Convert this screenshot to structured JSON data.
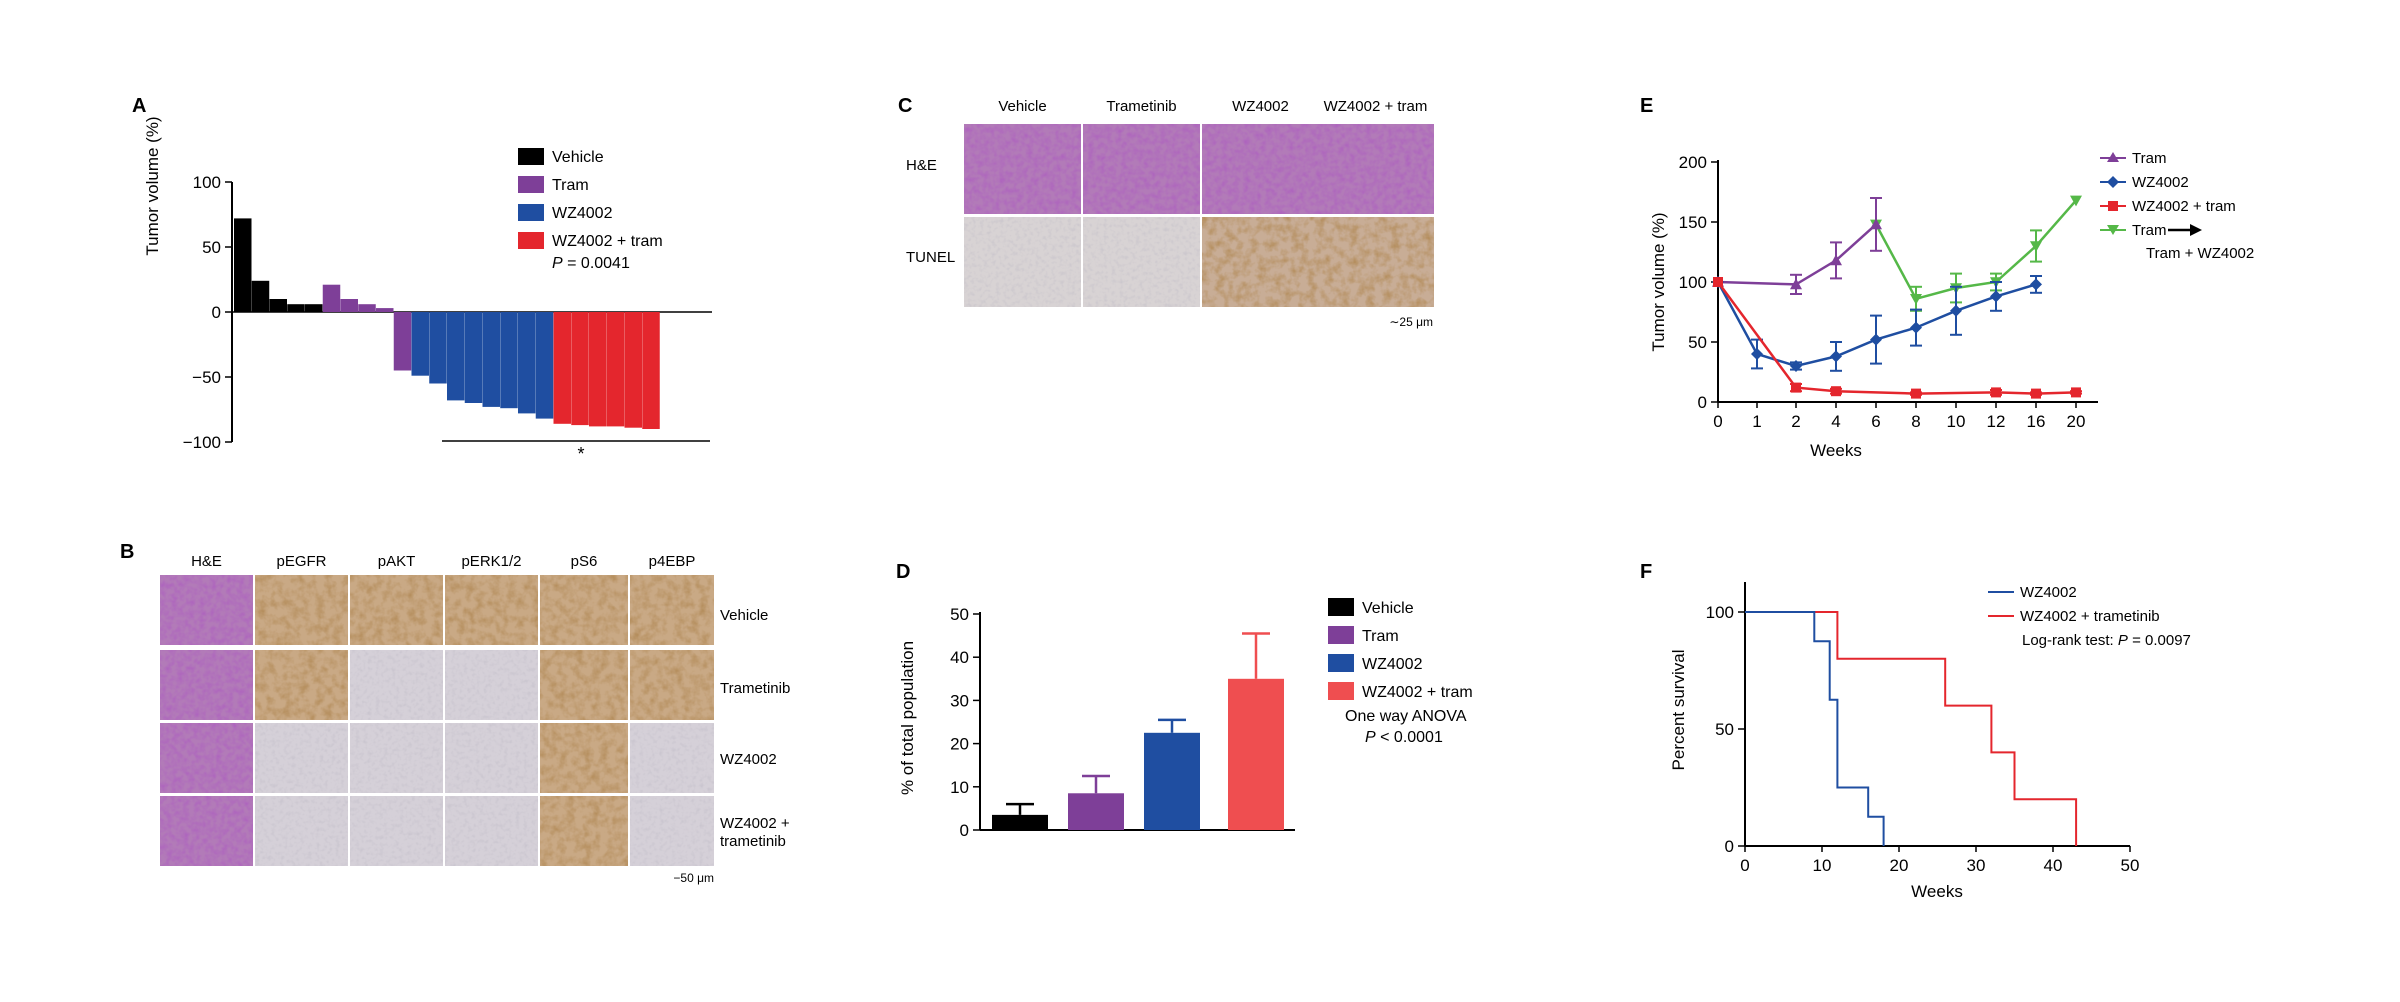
{
  "colors": {
    "vehicle": "#000000",
    "tram": "#7e3f98",
    "wz4002": "#1f4ea1",
    "combo": "#e4262d",
    "combo_d": "#ef4e50",
    "switch": "#55b848",
    "he_stain": "#9a4f9d",
    "dab_stain": "#a8784e",
    "hematoxylin": "#c9c3cd"
  },
  "panels": {
    "A": {
      "label": "A",
      "chart_data": {
        "type": "bar",
        "title": "",
        "xlabel": "",
        "ylabel": "Tumor volume (%)",
        "ylim": [
          -100,
          100
        ],
        "yticks": [
          "100",
          "50",
          "0",
          "−50",
          "−100"
        ],
        "series": [
          {
            "name": "Vehicle",
            "values": [
              72,
              24,
              10,
              6,
              6
            ]
          },
          {
            "name": "Tram",
            "values": [
              21,
              10,
              6,
              3,
              -45
            ]
          },
          {
            "name": "WZ4002",
            "values": [
              -49,
              -55,
              -68,
              -70,
              -73,
              -74,
              -78,
              -82
            ]
          },
          {
            "name": "WZ4002 + tram",
            "values": [
              -86,
              -87,
              -88,
              -88,
              -89,
              -90
            ]
          }
        ],
        "p_label": "P",
        "p_value": "= 0.0041",
        "significance": "*"
      }
    },
    "B": {
      "label": "B",
      "columns": [
        "H&E",
        "pEGFR",
        "pAKT",
        "pERK1/2",
        "pS6",
        "p4EBP"
      ],
      "rows": [
        "Vehicle",
        "Trametinib",
        "WZ4002",
        "WZ4002 +",
        "trametinib"
      ],
      "scale": "−50 μm"
    },
    "C": {
      "label": "C",
      "columns": [
        "Vehicle",
        "Trametinib",
        "WZ4002",
        "WZ4002 + tram"
      ],
      "rows": [
        "H&E",
        "TUNEL"
      ],
      "scale": "∼25 μm"
    },
    "D": {
      "label": "D",
      "chart_data": {
        "type": "bar",
        "title": "",
        "xlabel": "",
        "ylabel": "% of total population",
        "ylim": [
          0,
          50
        ],
        "yticks": [
          "0",
          "10",
          "20",
          "30",
          "40",
          "50"
        ],
        "categories": [
          "Vehicle",
          "Tram",
          "WZ4002",
          "WZ4002 + tram"
        ],
        "values": [
          3.5,
          8.5,
          22.5,
          35
        ],
        "errors": [
          2.5,
          4.0,
          3.0,
          10.5
        ],
        "test": "One way ANOVA",
        "p_label": "P",
        "p_value": "< 0.0001"
      }
    },
    "E": {
      "label": "E",
      "chart_data": {
        "type": "line",
        "title": "",
        "xlabel": "Weeks",
        "ylabel": "Tumor volume (%)",
        "ylim": [
          0,
          200
        ],
        "yticks": [
          "0",
          "50",
          "100",
          "150",
          "200"
        ],
        "x_categories": [
          "0",
          "1",
          "2",
          "4",
          "6",
          "8",
          "10",
          "12",
          "16",
          "20"
        ],
        "series": [
          {
            "name": "Tram",
            "marker": "triangle-up",
            "points": [
              [
                "0",
                100
              ],
              [
                "2",
                98
              ],
              [
                "4",
                118
              ],
              [
                "6",
                148
              ]
            ],
            "errors": [
              0,
              8,
              15,
              22
            ]
          },
          {
            "name": "WZ4002",
            "marker": "diamond",
            "points": [
              [
                "0",
                100
              ],
              [
                "1",
                40
              ],
              [
                "2",
                30
              ],
              [
                "4",
                38
              ],
              [
                "6",
                52
              ],
              [
                "8",
                62
              ],
              [
                "10",
                76
              ],
              [
                "12",
                88
              ],
              [
                "16",
                98
              ]
            ],
            "errors": [
              0,
              12,
              3,
              12,
              20,
              15,
              20,
              12,
              7
            ]
          },
          {
            "name": "WZ4002 + tram",
            "marker": "square",
            "points": [
              [
                "0",
                100
              ],
              [
                "2",
                12
              ],
              [
                "4",
                9
              ],
              [
                "8",
                7
              ],
              [
                "12",
                8
              ],
              [
                "16",
                7
              ],
              [
                "20",
                8
              ]
            ],
            "errors": [
              0,
              3,
              2,
              1,
              2,
              1,
              1
            ]
          },
          {
            "name": "Tram",
            "marker": "triangle-down",
            "points": [
              [
                "6",
                148
              ],
              [
                "8",
                86
              ],
              [
                "10",
                95
              ],
              [
                "12",
                100
              ],
              [
                "16",
                130
              ],
              [
                "20",
                168
              ]
            ],
            "errors": [
              0,
              10,
              12,
              7,
              13,
              0
            ]
          }
        ],
        "switch_label_2": "Tram + WZ4002"
      }
    },
    "F": {
      "label": "F",
      "chart_data": {
        "type": "line",
        "title": "",
        "xlabel": "Weeks",
        "ylabel": "Percent survival",
        "xlim": [
          0,
          50
        ],
        "ylim": [
          0,
          100
        ],
        "xticks": [
          "0",
          "10",
          "20",
          "30",
          "40",
          "50"
        ],
        "yticks": [
          "0",
          "50",
          "100"
        ],
        "series": [
          {
            "name": "WZ4002",
            "steps": [
              [
                0,
                100
              ],
              [
                9,
                100
              ],
              [
                9,
                87.5
              ],
              [
                11,
                87.5
              ],
              [
                11,
                62.5
              ],
              [
                12,
                62.5
              ],
              [
                12,
                25
              ],
              [
                16,
                25
              ],
              [
                16,
                12.5
              ],
              [
                18,
                12.5
              ],
              [
                18,
                0
              ]
            ]
          },
          {
            "name": "WZ4002 + trametinib",
            "steps": [
              [
                0,
                100
              ],
              [
                12,
                100
              ],
              [
                12,
                80
              ],
              [
                26,
                80
              ],
              [
                26,
                60
              ],
              [
                32,
                60
              ],
              [
                32,
                40
              ],
              [
                35,
                40
              ],
              [
                35,
                20
              ],
              [
                43,
                20
              ],
              [
                43,
                0
              ]
            ]
          }
        ],
        "test": "Log-rank test:",
        "p_label": "P",
        "p_value": "= 0.0097"
      }
    }
  }
}
